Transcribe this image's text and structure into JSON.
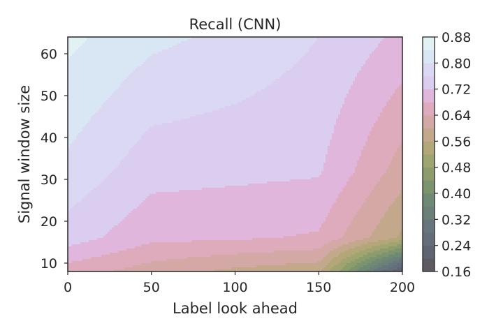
{
  "chart_data": {
    "type": "contour",
    "title": "Recall (CNN)",
    "xlabel": "Label look ahead",
    "ylabel": "Signal window size",
    "xlim": [
      0,
      200
    ],
    "ylim": [
      8,
      64
    ],
    "x_ticks": [
      0,
      50,
      100,
      150,
      200
    ],
    "y_ticks": [
      10,
      20,
      30,
      40,
      50,
      60
    ],
    "colorbar": {
      "ticks": [
        "0.16",
        "0.24",
        "0.32",
        "0.40",
        "0.48",
        "0.56",
        "0.64",
        "0.72",
        "0.80",
        "0.88"
      ],
      "range": [
        0.16,
        0.88
      ],
      "levels": [
        0.16,
        0.2,
        0.24,
        0.28,
        0.32,
        0.36,
        0.4,
        0.44,
        0.48,
        0.52,
        0.56,
        0.6,
        0.64,
        0.68,
        0.72,
        0.76,
        0.8,
        0.84,
        0.88
      ],
      "band_colors": [
        "#5b5b61",
        "#5f6472",
        "#646e7b",
        "#66767c",
        "#6a8079",
        "#6f8a74",
        "#7c946d",
        "#8c9c6c",
        "#a0a470",
        "#b3a77a",
        "#c4a88c",
        "#d4a8a4",
        "#deabbd",
        "#e1b6dc",
        "#dbcdef",
        "#dad8f3",
        "#d9e6f3",
        "#e2f1f3",
        "#f2f9f2"
      ]
    },
    "x": [
      0,
      50,
      100,
      150,
      200
    ],
    "y": [
      8,
      16,
      32,
      64
    ],
    "z": [
      [
        0.66,
        0.62,
        0.59,
        0.57,
        0.18
      ],
      [
        0.74,
        0.69,
        0.685,
        0.675,
        0.55
      ],
      [
        0.79,
        0.735,
        0.73,
        0.725,
        0.62
      ],
      [
        0.85,
        0.81,
        0.79,
        0.76,
        0.71
      ]
    ]
  }
}
